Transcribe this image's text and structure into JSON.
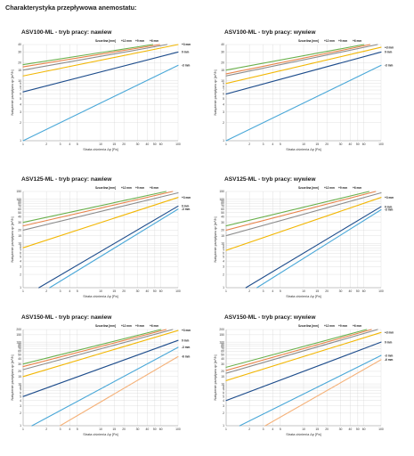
{
  "heading": "Charakterystyka przepływowa anemostatu:",
  "colors": {
    "green": "#6ab04c",
    "orange": "#e8834a",
    "gray": "#8c8c8c",
    "yellow": "#f2b705",
    "navy": "#1e4d8c",
    "blue": "#4aa8d8",
    "peach": "#f5b27a"
  },
  "chart_data": [
    {
      "type": "line",
      "title": "ASV100-ML - tryb pracy: nawiew",
      "xlabel": "Strata ciśnienia Δp [Pa]",
      "ylabel": "Natężenie przepływu qv [m³/h]",
      "legend_title": "Szczelina [mm]",
      "x_ticks": [
        "1",
        "2",
        "3",
        "4",
        "5",
        "10",
        "15",
        "20",
        "30",
        "40",
        "50",
        "60",
        "100"
      ],
      "y_ticks": [
        "1",
        "2",
        "3",
        "4",
        "5",
        "6",
        "7",
        "8",
        "9",
        "10",
        "15",
        "20",
        "30",
        "40"
      ],
      "series": [
        {
          "name": "+12 mm",
          "color": "green",
          "x": [
            1,
            47
          ],
          "y": [
            18.5,
            40
          ]
        },
        {
          "name": "+9 mm",
          "color": "orange",
          "x": [
            1,
            58
          ],
          "y": [
            17,
            40
          ]
        },
        {
          "name": "+6 mm",
          "color": "gray",
          "x": [
            1,
            72
          ],
          "y": [
            15,
            40
          ]
        },
        {
          "name": "+3 mm",
          "color": "yellow",
          "x": [
            1,
            100
          ],
          "y": [
            12,
            40
          ]
        },
        {
          "name": "0 mm",
          "color": "navy",
          "x": [
            1,
            100
          ],
          "y": [
            6.5,
            30
          ]
        },
        {
          "name": "-3 mm",
          "color": "blue",
          "x": [
            1,
            100
          ],
          "y": [
            1,
            18
          ]
        }
      ]
    },
    {
      "type": "line",
      "title": "ASV100-ML - tryb pracy: wywiew",
      "xlabel": "Strata ciśnienia Δp [Pa]",
      "ylabel": "Natężenie przepływu qv [m³/h]",
      "legend_title": "Szczelina [mm]",
      "x_ticks": [
        "1",
        "2",
        "3",
        "4",
        "5",
        "10",
        "15",
        "20",
        "30",
        "40",
        "50",
        "60",
        "100"
      ],
      "y_ticks": [
        "1",
        "2",
        "3",
        "4",
        "5",
        "6",
        "7",
        "8",
        "9",
        "10",
        "15",
        "20",
        "30",
        "40"
      ],
      "series": [
        {
          "name": "+12 mm",
          "color": "green",
          "x": [
            1,
            60
          ],
          "y": [
            15,
            40
          ]
        },
        {
          "name": "+9 mm",
          "color": "orange",
          "x": [
            1,
            72
          ],
          "y": [
            13,
            40
          ]
        },
        {
          "name": "+6 mm",
          "color": "gray",
          "x": [
            1,
            90
          ],
          "y": [
            12,
            40
          ]
        },
        {
          "name": "+3 mm",
          "color": "yellow",
          "x": [
            1,
            100
          ],
          "y": [
            9,
            36
          ]
        },
        {
          "name": "0 mm",
          "color": "navy",
          "x": [
            1,
            100
          ],
          "y": [
            6,
            30
          ]
        },
        {
          "name": "-3 mm",
          "color": "blue",
          "x": [
            1,
            100
          ],
          "y": [
            1,
            18
          ]
        }
      ]
    },
    {
      "type": "line",
      "title": "ASV125-ML - tryb pracy: nawiew",
      "xlabel": "Strata ciśnienia Δp [Pa]",
      "ylabel": "Natężenie przepływu qv [m³/h]",
      "legend_title": "Szczelina [mm]",
      "x_ticks": [
        "1",
        "2",
        "3",
        "4",
        "5",
        "10",
        "15",
        "20",
        "30",
        "40",
        "50",
        "60",
        "100"
      ],
      "y_ticks": [
        "1",
        "2",
        "3",
        "4",
        "5",
        "6",
        "7",
        "8",
        "9",
        "10",
        "15",
        "20",
        "30",
        "40",
        "50",
        "60",
        "70",
        "80",
        "90",
        "100",
        "150"
      ],
      "series": [
        {
          "name": "+12 mm",
          "color": "green",
          "x": [
            1,
            70
          ],
          "y": [
            30,
            150
          ]
        },
        {
          "name": "+9 mm",
          "color": "orange",
          "x": [
            1,
            85
          ],
          "y": [
            25,
            150
          ]
        },
        {
          "name": "+6 mm",
          "color": "gray",
          "x": [
            1,
            100
          ],
          "y": [
            20,
            140
          ]
        },
        {
          "name": "+3 mm",
          "color": "yellow",
          "x": [
            1,
            100
          ],
          "y": [
            8,
            110
          ]
        },
        {
          "name": "0 mm",
          "color": "navy",
          "x": [
            1.6,
            100
          ],
          "y": [
            1,
            70
          ]
        },
        {
          "name": "-3 mm",
          "color": "blue",
          "x": [
            2.2,
            100
          ],
          "y": [
            1,
            60
          ]
        }
      ]
    },
    {
      "type": "line",
      "title": "ASV125-ML - tryb pracy: wywiew",
      "xlabel": "Strata ciśnienia Δp [Pa]",
      "ylabel": "Natężenie przepływu qv [m³/h]",
      "legend_title": "Szczelina [mm]",
      "x_ticks": [
        "1",
        "2",
        "3",
        "4",
        "5",
        "10",
        "15",
        "20",
        "30",
        "40",
        "50",
        "60",
        "100"
      ],
      "y_ticks": [
        "1",
        "2",
        "3",
        "4",
        "5",
        "6",
        "7",
        "8",
        "9",
        "10",
        "15",
        "20",
        "30",
        "40",
        "50",
        "60",
        "70",
        "80",
        "90",
        "100",
        "150"
      ],
      "series": [
        {
          "name": "+12 mm",
          "color": "green",
          "x": [
            1,
            70
          ],
          "y": [
            25,
            150
          ]
        },
        {
          "name": "+9 mm",
          "color": "orange",
          "x": [
            1,
            85
          ],
          "y": [
            20,
            150
          ]
        },
        {
          "name": "+6 mm",
          "color": "gray",
          "x": [
            1,
            100
          ],
          "y": [
            15,
            140
          ]
        },
        {
          "name": "+3 mm",
          "color": "yellow",
          "x": [
            1,
            100
          ],
          "y": [
            7,
            110
          ]
        },
        {
          "name": "0 mm",
          "color": "navy",
          "x": [
            1.8,
            100
          ],
          "y": [
            1,
            68
          ]
        },
        {
          "name": "-3 mm",
          "color": "blue",
          "x": [
            2.5,
            100
          ],
          "y": [
            1,
            58
          ]
        }
      ]
    },
    {
      "type": "line",
      "title": "ASV150-ML - tryb pracy: nawiew",
      "xlabel": "Strata ciśnienia Δp [Pa]",
      "ylabel": "Natężenie przepływu qv [m³/h]",
      "legend_title": "Szczelina [mm]",
      "x_ticks": [
        "1",
        "2",
        "3",
        "4",
        "5",
        "10",
        "15",
        "20",
        "30",
        "40",
        "50",
        "60",
        "100"
      ],
      "y_ticks": [
        "1",
        "2",
        "3",
        "4",
        "5",
        "6",
        "7",
        "8",
        "9",
        "10",
        "15",
        "20",
        "30",
        "40",
        "50",
        "60",
        "70",
        "80",
        "90",
        "100",
        "150",
        "200"
      ],
      "series": [
        {
          "name": "+12 mm",
          "color": "green",
          "x": [
            1,
            60
          ],
          "y": [
            30,
            200
          ]
        },
        {
          "name": "+9 mm",
          "color": "orange",
          "x": [
            1,
            70
          ],
          "y": [
            26,
            200
          ]
        },
        {
          "name": "+6 mm",
          "color": "gray",
          "x": [
            1,
            85
          ],
          "y": [
            22,
            200
          ]
        },
        {
          "name": "+3 mm",
          "color": "yellow",
          "x": [
            1,
            100
          ],
          "y": [
            15,
            190
          ]
        },
        {
          "name": "0 mm",
          "color": "navy",
          "x": [
            1,
            100
          ],
          "y": [
            5,
            110
          ]
        },
        {
          "name": "-3 mm",
          "color": "blue",
          "x": [
            1.3,
            100
          ],
          "y": [
            1,
            75
          ]
        },
        {
          "name": "-6 mm",
          "color": "peach",
          "x": [
            3,
            100
          ],
          "y": [
            1,
            45
          ]
        }
      ]
    },
    {
      "type": "line",
      "title": "ASV150-ML - tryb pracy: wywiew",
      "xlabel": "Strata ciśnienia Δp [Pa]",
      "ylabel": "Natężenie przepływu qv [m³/h]",
      "legend_title": "Szczelina [mm]",
      "x_ticks": [
        "1",
        "2",
        "3",
        "4",
        "5",
        "10",
        "15",
        "20",
        "30",
        "40",
        "50",
        "60",
        "100"
      ],
      "y_ticks": [
        "1",
        "2",
        "3",
        "4",
        "5",
        "6",
        "7",
        "8",
        "9",
        "10",
        "15",
        "20",
        "30",
        "40",
        "50",
        "60",
        "70",
        "80",
        "90",
        "100",
        "150",
        "200"
      ],
      "series": [
        {
          "name": "+12 mm",
          "color": "green",
          "x": [
            1,
            65
          ],
          "y": [
            25,
            200
          ]
        },
        {
          "name": "+9 mm",
          "color": "orange",
          "x": [
            1,
            75
          ],
          "y": [
            21,
            200
          ]
        },
        {
          "name": "+6 mm",
          "color": "gray",
          "x": [
            1,
            90
          ],
          "y": [
            18,
            200
          ]
        },
        {
          "name": "+3 mm",
          "color": "yellow",
          "x": [
            1,
            100
          ],
          "y": [
            12,
            170
          ]
        },
        {
          "name": "0 mm",
          "color": "navy",
          "x": [
            1,
            100
          ],
          "y": [
            4,
            100
          ]
        },
        {
          "name": "-3 mm",
          "color": "blue",
          "x": [
            1.5,
            100
          ],
          "y": [
            1,
            48
          ]
        },
        {
          "name": "-6 mm",
          "color": "peach",
          "x": [
            3.2,
            100
          ],
          "y": [
            1,
            38
          ]
        }
      ]
    }
  ]
}
